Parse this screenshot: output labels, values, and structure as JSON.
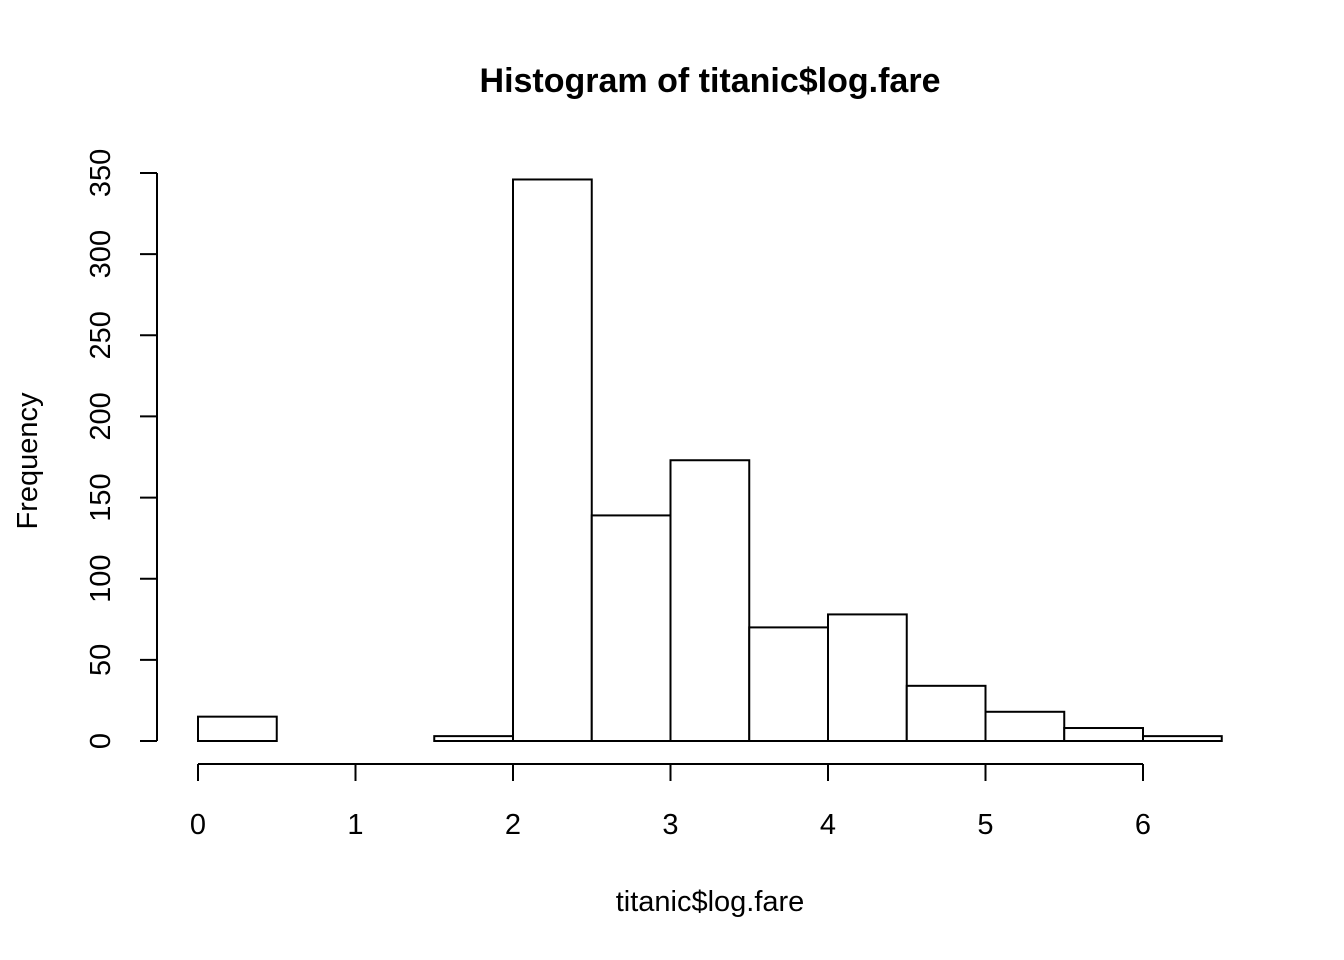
{
  "chart_data": {
    "type": "bar",
    "title": "Histogram of titanic$log.fare",
    "xlabel": "titanic$log.fare",
    "ylabel": "Frequency",
    "bins": [
      {
        "start": 0.0,
        "end": 0.5,
        "count": 15
      },
      {
        "start": 0.5,
        "end": 1.0,
        "count": 0
      },
      {
        "start": 1.0,
        "end": 1.5,
        "count": 0
      },
      {
        "start": 1.5,
        "end": 2.0,
        "count": 3
      },
      {
        "start": 2.0,
        "end": 2.5,
        "count": 346
      },
      {
        "start": 2.5,
        "end": 3.0,
        "count": 139
      },
      {
        "start": 3.0,
        "end": 3.5,
        "count": 173
      },
      {
        "start": 3.5,
        "end": 4.0,
        "count": 70
      },
      {
        "start": 4.0,
        "end": 4.5,
        "count": 78
      },
      {
        "start": 4.5,
        "end": 5.0,
        "count": 34
      },
      {
        "start": 5.0,
        "end": 5.5,
        "count": 18
      },
      {
        "start": 5.5,
        "end": 6.0,
        "count": 8
      },
      {
        "start": 6.0,
        "end": 6.5,
        "count": 3
      }
    ],
    "xticks": [
      0,
      1,
      2,
      3,
      4,
      5,
      6
    ],
    "yticks": [
      0,
      50,
      100,
      150,
      200,
      250,
      300,
      350
    ],
    "xlim": [
      0,
      6.5
    ],
    "ylim": [
      0,
      350
    ],
    "grid": false
  }
}
